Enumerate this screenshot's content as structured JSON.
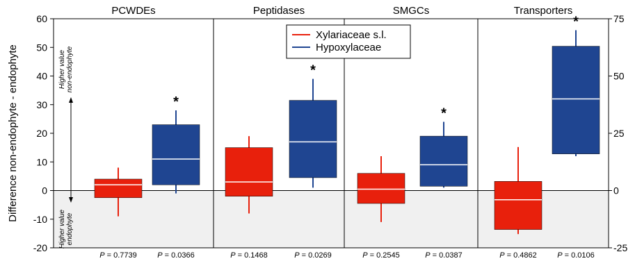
{
  "chart_data": {
    "type": "box",
    "ylabel": "Difference non-endophyte - endophyte",
    "left_ylim": [
      -20,
      60
    ],
    "left_ticks": [
      -20,
      -10,
      0,
      10,
      20,
      30,
      40,
      50,
      60
    ],
    "right_ylim": [
      -25,
      75
    ],
    "right_ticks": [
      -25,
      0,
      25,
      50,
      75
    ],
    "right_axis_panel": "Transporters",
    "shaded_below_zero": true,
    "annotation_top": "Higher value non-endophyte",
    "annotation_bottom": "Higher value endophyte",
    "legend": {
      "position": "top-center",
      "entries": [
        {
          "name": "Xylariaceae s.l.",
          "color": "#e8200c"
        },
        {
          "name": "Hypoxylaceae",
          "color": "#1f4591"
        }
      ]
    },
    "panels": [
      {
        "title": "PCWDEs",
        "axis": "left",
        "boxes": [
          {
            "series": "Xylariaceae s.l.",
            "whisker_low": -9,
            "q1": -2.5,
            "median": 2,
            "q3": 4,
            "whisker_high": 8,
            "p_label": "P = 0.7739",
            "significant": false
          },
          {
            "series": "Hypoxylaceae",
            "whisker_low": -1,
            "q1": 2,
            "median": 11,
            "q3": 23,
            "whisker_high": 28,
            "p_label": "P = 0.0366",
            "significant": true
          }
        ]
      },
      {
        "title": "Peptidases",
        "axis": "left",
        "boxes": [
          {
            "series": "Xylariaceae s.l.",
            "whisker_low": -8,
            "q1": -2,
            "median": 3,
            "q3": 15,
            "whisker_high": 19,
            "p_label": "P = 0.1468",
            "significant": false
          },
          {
            "series": "Hypoxylaceae",
            "whisker_low": 1,
            "q1": 4.5,
            "median": 17,
            "q3": 31.5,
            "whisker_high": 39,
            "p_label": "P = 0.0269",
            "significant": true
          }
        ]
      },
      {
        "title": "SMGCs",
        "axis": "left",
        "boxes": [
          {
            "series": "Xylariaceae s.l.",
            "whisker_low": -11,
            "q1": -4.5,
            "median": 0.5,
            "q3": 6,
            "whisker_high": 12,
            "p_label": "P = 0.2545",
            "significant": false
          },
          {
            "series": "Hypoxylaceae",
            "whisker_low": 1,
            "q1": 1.5,
            "median": 9,
            "q3": 19,
            "whisker_high": 24,
            "p_label": "P = 0.0387",
            "significant": true
          }
        ]
      },
      {
        "title": "Transporters",
        "axis": "right",
        "boxes": [
          {
            "series": "Xylariaceae s.l.",
            "whisker_low": -19,
            "q1": -17,
            "median": -4,
            "q3": 4,
            "whisker_high": 19,
            "p_label": "P = 0.4862",
            "significant": false
          },
          {
            "series": "Hypoxylaceae",
            "whisker_low": 15,
            "q1": 16,
            "median": 40,
            "q3": 63,
            "whisker_high": 70,
            "p_label": "P = 0.0106",
            "significant": true
          }
        ]
      }
    ],
    "significance_marker": "*",
    "colors": {
      "Xylariaceae s.l.": "#e8200c",
      "Hypoxylaceae": "#1f4591",
      "shade": "#f0f0f0",
      "median_line": "#ffffff"
    }
  }
}
